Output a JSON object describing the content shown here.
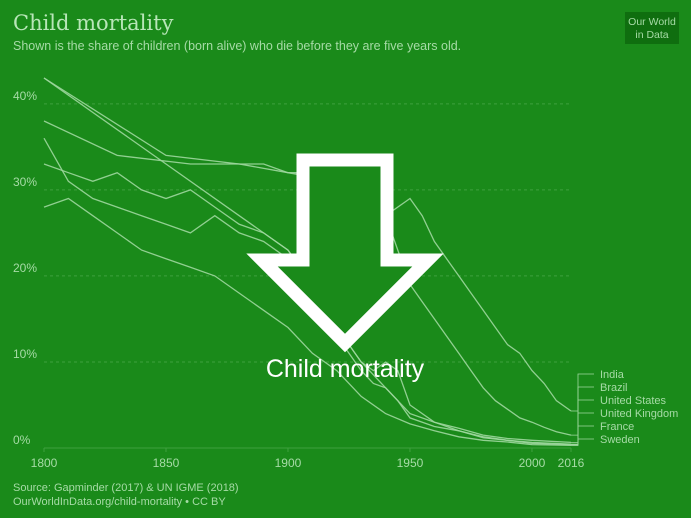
{
  "colors": {
    "background": "#1a8a1a",
    "line": "#9ed79e",
    "text": "#a6dba6",
    "grid": "#3fa03f",
    "arrow": "#ffffff"
  },
  "logo": {
    "line1": "Our World",
    "line2": "in Data"
  },
  "overlay": {
    "label": "Child mortality",
    "arrow_icon": "down-arrow-icon"
  },
  "chart_data": {
    "type": "line",
    "title": "Child mortality",
    "subtitle": "Shown is the share of children (born alive) who die before they are five years old.",
    "xlabel": "",
    "ylabel": "",
    "xlim": [
      1800,
      2016
    ],
    "ylim": [
      0,
      43
    ],
    "x_ticks": [
      1800,
      1850,
      1900,
      1950,
      2000,
      2016
    ],
    "y_ticks": [
      {
        "value": 0,
        "label": "0%"
      },
      {
        "value": 10,
        "label": "10%"
      },
      {
        "value": 20,
        "label": "20%"
      },
      {
        "value": 30,
        "label": "30%"
      },
      {
        "value": 40,
        "label": "40%"
      }
    ],
    "grid": true,
    "source": "Source: Gapminder (2017) & UN IGME (2018)",
    "url": "OurWorldInData.org/child-mortality • CC BY",
    "series": [
      {
        "name": "India",
        "points": [
          [
            1800,
            38
          ],
          [
            1830,
            34
          ],
          [
            1860,
            33
          ],
          [
            1890,
            33
          ],
          [
            1900,
            32
          ],
          [
            1910,
            32
          ],
          [
            1920,
            30
          ],
          [
            1930,
            29
          ],
          [
            1940,
            27
          ],
          [
            1950,
            29
          ],
          [
            1955,
            27
          ],
          [
            1960,
            24
          ],
          [
            1965,
            22
          ],
          [
            1970,
            20
          ],
          [
            1975,
            18
          ],
          [
            1980,
            16
          ],
          [
            1985,
            14
          ],
          [
            1990,
            12
          ],
          [
            1995,
            11
          ],
          [
            2000,
            9
          ],
          [
            2005,
            7.5
          ],
          [
            2010,
            5.5
          ],
          [
            2016,
            4.3
          ]
        ]
      },
      {
        "name": "Brazil",
        "points": [
          [
            1800,
            43
          ],
          [
            1850,
            34
          ],
          [
            1880,
            33
          ],
          [
            1900,
            32
          ],
          [
            1920,
            31
          ],
          [
            1930,
            30
          ],
          [
            1940,
            27
          ],
          [
            1945,
            23
          ],
          [
            1950,
            19
          ],
          [
            1955,
            17
          ],
          [
            1960,
            15
          ],
          [
            1965,
            13
          ],
          [
            1970,
            11
          ],
          [
            1975,
            9
          ],
          [
            1980,
            7
          ],
          [
            1985,
            5.5
          ],
          [
            1990,
            4.5
          ],
          [
            1995,
            3.5
          ],
          [
            2000,
            3
          ],
          [
            2005,
            2.4
          ],
          [
            2010,
            1.9
          ],
          [
            2016,
            1.5
          ]
        ]
      },
      {
        "name": "United States",
        "points": [
          [
            1800,
            46
          ],
          [
            1850,
            33
          ],
          [
            1880,
            27
          ],
          [
            1900,
            23
          ],
          [
            1910,
            19
          ],
          [
            1920,
            14
          ],
          [
            1930,
            10
          ],
          [
            1940,
            7
          ],
          [
            1950,
            4
          ],
          [
            1960,
            3
          ],
          [
            1970,
            2.3
          ],
          [
            1980,
            1.5
          ],
          [
            1990,
            1.1
          ],
          [
            2000,
            0.9
          ],
          [
            2016,
            0.65
          ]
        ]
      },
      {
        "name": "United Kingdom",
        "points": [
          [
            1800,
            33
          ],
          [
            1810,
            32
          ],
          [
            1820,
            31
          ],
          [
            1830,
            32
          ],
          [
            1840,
            30
          ],
          [
            1850,
            29
          ],
          [
            1860,
            30
          ],
          [
            1870,
            28
          ],
          [
            1880,
            26
          ],
          [
            1890,
            25
          ],
          [
            1900,
            23
          ],
          [
            1905,
            21
          ],
          [
            1910,
            18
          ],
          [
            1915,
            17
          ],
          [
            1920,
            13
          ],
          [
            1925,
            11
          ],
          [
            1930,
            9
          ],
          [
            1935,
            7.5
          ],
          [
            1940,
            7
          ],
          [
            1945,
            5.5
          ],
          [
            1950,
            3.5
          ],
          [
            1960,
            2.5
          ],
          [
            1970,
            2
          ],
          [
            1980,
            1.3
          ],
          [
            1990,
            0.9
          ],
          [
            2000,
            0.65
          ],
          [
            2016,
            0.45
          ]
        ]
      },
      {
        "name": "France",
        "points": [
          [
            1800,
            36
          ],
          [
            1810,
            31
          ],
          [
            1820,
            29
          ],
          [
            1830,
            28
          ],
          [
            1840,
            27
          ],
          [
            1850,
            26
          ],
          [
            1860,
            25
          ],
          [
            1870,
            27
          ],
          [
            1880,
            25
          ],
          [
            1890,
            24
          ],
          [
            1900,
            22
          ],
          [
            1905,
            20
          ],
          [
            1910,
            18
          ],
          [
            1915,
            20
          ],
          [
            1920,
            15
          ],
          [
            1925,
            12
          ],
          [
            1930,
            10
          ],
          [
            1935,
            9
          ],
          [
            1940,
            10
          ],
          [
            1945,
            9
          ],
          [
            1950,
            5
          ],
          [
            1960,
            3
          ],
          [
            1970,
            2
          ],
          [
            1980,
            1.2
          ],
          [
            1990,
            0.9
          ],
          [
            2000,
            0.55
          ],
          [
            2016,
            0.4
          ]
        ]
      },
      {
        "name": "Sweden",
        "points": [
          [
            1800,
            28
          ],
          [
            1810,
            29
          ],
          [
            1820,
            27
          ],
          [
            1830,
            25
          ],
          [
            1840,
            23
          ],
          [
            1850,
            22
          ],
          [
            1860,
            21
          ],
          [
            1870,
            20
          ],
          [
            1880,
            18
          ],
          [
            1890,
            16
          ],
          [
            1900,
            14
          ],
          [
            1910,
            11
          ],
          [
            1920,
            9
          ],
          [
            1930,
            6
          ],
          [
            1940,
            4
          ],
          [
            1950,
            2.8
          ],
          [
            1960,
            2
          ],
          [
            1970,
            1.3
          ],
          [
            1980,
            0.9
          ],
          [
            1990,
            0.7
          ],
          [
            2000,
            0.4
          ],
          [
            2016,
            0.3
          ]
        ]
      }
    ]
  }
}
